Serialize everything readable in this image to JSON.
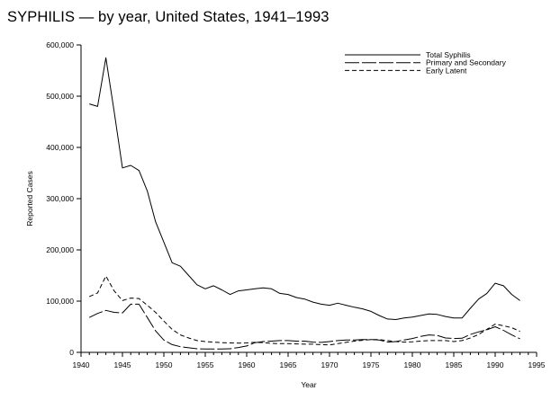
{
  "chart_data": {
    "type": "line",
    "title": "SYPHILIS — by year, United States, 1941–1993",
    "xlabel": "Year",
    "ylabel": "Reported Cases",
    "xlim": [
      1940,
      1995
    ],
    "ylim": [
      0,
      600000
    ],
    "x_ticks": [
      1940,
      1945,
      1950,
      1955,
      1960,
      1965,
      1970,
      1975,
      1980,
      1985,
      1990,
      1995
    ],
    "y_ticks": [
      0,
      100000,
      200000,
      300000,
      400000,
      500000,
      600000
    ],
    "y_tick_labels": [
      "0",
      "100,000",
      "200,000",
      "300,000",
      "400,000",
      "500,000",
      "600,000"
    ],
    "legend_position": "top-right",
    "x": [
      1941,
      1942,
      1943,
      1944,
      1945,
      1946,
      1947,
      1948,
      1949,
      1950,
      1951,
      1952,
      1953,
      1954,
      1955,
      1956,
      1957,
      1958,
      1959,
      1960,
      1961,
      1962,
      1963,
      1964,
      1965,
      1966,
      1967,
      1968,
      1969,
      1970,
      1971,
      1972,
      1973,
      1974,
      1975,
      1976,
      1977,
      1978,
      1979,
      1980,
      1981,
      1982,
      1983,
      1984,
      1985,
      1986,
      1987,
      1988,
      1989,
      1990,
      1991,
      1992,
      1993
    ],
    "series": [
      {
        "name": "Total Syphilis",
        "style": "solid",
        "values": [
          485000,
          480000,
          575000,
          470000,
          360000,
          365000,
          355000,
          315000,
          255000,
          215000,
          175000,
          168000,
          150000,
          132000,
          124000,
          130000,
          122000,
          113000,
          120000,
          122000,
          124000,
          126000,
          124000,
          115000,
          113000,
          107000,
          104000,
          98000,
          94000,
          92000,
          96000,
          92000,
          88000,
          85000,
          80000,
          72000,
          65000,
          64000,
          67000,
          69000,
          72000,
          75000,
          74000,
          70000,
          67000,
          67000,
          86000,
          104000,
          115000,
          135000,
          130000,
          113000,
          101000
        ]
      },
      {
        "name": "Primary and Secondary",
        "style": "longdash",
        "values": [
          68000,
          76000,
          82000,
          78000,
          77000,
          94000,
          94000,
          68000,
          42000,
          24000,
          15000,
          11000,
          9000,
          7000,
          6500,
          6500,
          6500,
          7000,
          9500,
          12500,
          19000,
          21000,
          22000,
          23000,
          23000,
          22000,
          22000,
          20000,
          19500,
          21000,
          23000,
          24000,
          24000,
          25000,
          25000,
          24000,
          20000,
          21000,
          24000,
          27000,
          31000,
          34000,
          33000,
          28000,
          27000,
          27500,
          35000,
          40000,
          44000,
          50000,
          43000,
          34000,
          26500
        ]
      },
      {
        "name": "Early Latent",
        "style": "dashed",
        "values": [
          109000,
          116000,
          149000,
          120000,
          101000,
          106000,
          105000,
          92000,
          78000,
          61000,
          45000,
          34000,
          28000,
          23000,
          21000,
          20000,
          19000,
          18500,
          18000,
          18500,
          19500,
          19000,
          17500,
          17000,
          17000,
          16500,
          16000,
          16000,
          15000,
          14500,
          17000,
          19500,
          22000,
          23500,
          25000,
          25000,
          23000,
          21000,
          20000,
          20500,
          22000,
          23000,
          23000,
          23000,
          21000,
          23000,
          28000,
          35000,
          45000,
          55000,
          52000,
          48000,
          41000
        ]
      }
    ]
  }
}
